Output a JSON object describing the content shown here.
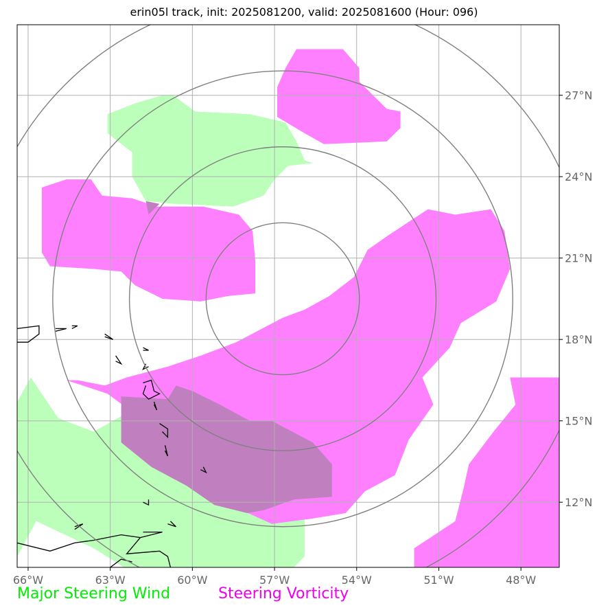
{
  "title": "erin05l track, init: 2025081200, valid: 2025081600 (Hour: 096)",
  "map": {
    "lon_range": [
      -66.4,
      -46.6
    ],
    "lat_range": [
      9.6,
      29.6
    ],
    "lon_ticks": [
      {
        "value": -66,
        "label": "66°W"
      },
      {
        "value": -63,
        "label": "63°W"
      },
      {
        "value": -60,
        "label": "60°W"
      },
      {
        "value": -57,
        "label": "57°W"
      },
      {
        "value": -54,
        "label": "54°W"
      },
      {
        "value": -51,
        "label": "51°W"
      },
      {
        "value": -48,
        "label": "48°W"
      }
    ],
    "lat_ticks": [
      {
        "value": 12,
        "label": "12°N"
      },
      {
        "value": 15,
        "label": "15°N"
      },
      {
        "value": 18,
        "label": "18°N"
      },
      {
        "value": 21,
        "label": "21°N"
      },
      {
        "value": 24,
        "label": "24°N"
      },
      {
        "value": 27,
        "label": "27°N"
      }
    ],
    "gridlines": true,
    "range_rings": {
      "center_lon": -56.7,
      "center_lat": 19.5,
      "radii_deg": [
        2.8,
        5.6,
        8.4,
        11.2
      ],
      "color": "#808080"
    },
    "colors": {
      "wind": "#bbffbb",
      "vorticity": "#ff80ff",
      "overlap": "#c080c0",
      "grid": "#b0b0b0",
      "coast": "#000000"
    },
    "wind_regions": [
      [
        [
          -62.1,
          26.7
        ],
        [
          -61.1,
          27.0
        ],
        [
          -60.7,
          27.0
        ],
        [
          -59.9,
          26.4
        ],
        [
          -57.9,
          26.3
        ],
        [
          -56.6,
          26.0
        ],
        [
          -56.2,
          25.3
        ],
        [
          -55.9,
          24.6
        ],
        [
          -55.6,
          24.5
        ],
        [
          -56.5,
          24.4
        ],
        [
          -57.0,
          23.9
        ],
        [
          -57.4,
          23.3
        ],
        [
          -58.5,
          22.9
        ],
        [
          -60.7,
          23.0
        ],
        [
          -61.7,
          23.1
        ],
        [
          -62.2,
          24.0
        ],
        [
          -62.2,
          24.9
        ],
        [
          -63.1,
          25.6
        ],
        [
          -63.1,
          26.3
        ]
      ],
      [
        [
          -66.4,
          10.0
        ],
        [
          -66.4,
          15.7
        ],
        [
          -65.9,
          16.6
        ],
        [
          -64.9,
          15.1
        ],
        [
          -63.6,
          14.6
        ],
        [
          -62.2,
          15.4
        ],
        [
          -61.1,
          14.3
        ],
        [
          -59.4,
          13.8
        ],
        [
          -57.4,
          13.0
        ],
        [
          -55.9,
          12.5
        ],
        [
          -55.9,
          10.0
        ],
        [
          -56.3,
          9.6
        ],
        [
          -62.5,
          9.6
        ],
        [
          -63.6,
          10.3
        ],
        [
          -65.7,
          11.3
        ]
      ]
    ],
    "vorticity_regions": [
      [
        [
          -56.2,
          28.7
        ],
        [
          -54.5,
          28.7
        ],
        [
          -53.9,
          28.0
        ],
        [
          -53.9,
          27.5
        ],
        [
          -52.9,
          26.5
        ],
        [
          -52.4,
          26.4
        ],
        [
          -52.4,
          25.8
        ],
        [
          -52.9,
          25.3
        ],
        [
          -55.2,
          25.2
        ],
        [
          -55.9,
          25.6
        ],
        [
          -56.9,
          26.2
        ],
        [
          -56.9,
          27.3
        ],
        [
          -56.6,
          28.0
        ]
      ],
      [
        [
          -65.5,
          23.6
        ],
        [
          -64.6,
          23.9
        ],
        [
          -63.7,
          23.9
        ],
        [
          -63.3,
          23.3
        ],
        [
          -62.2,
          23.2
        ],
        [
          -61.3,
          22.9
        ],
        [
          -60.6,
          22.9
        ],
        [
          -59.6,
          22.9
        ],
        [
          -58.3,
          22.6
        ],
        [
          -57.8,
          22.0
        ],
        [
          -57.7,
          20.9
        ],
        [
          -57.7,
          19.7
        ],
        [
          -58.7,
          19.6
        ],
        [
          -59.7,
          19.4
        ],
        [
          -61.1,
          19.5
        ],
        [
          -62.1,
          20.0
        ],
        [
          -62.6,
          20.5
        ],
        [
          -63.6,
          20.6
        ],
        [
          -65.2,
          20.7
        ],
        [
          -65.5,
          21.2
        ]
      ],
      [
        [
          -64.6,
          16.5
        ],
        [
          -64.2,
          16.5
        ],
        [
          -63.2,
          16.3
        ],
        [
          -62.4,
          16.6
        ],
        [
          -60.9,
          17.0
        ],
        [
          -59.7,
          17.4
        ],
        [
          -58.4,
          17.9
        ],
        [
          -56.7,
          18.8
        ],
        [
          -55.9,
          19.1
        ],
        [
          -55.0,
          19.6
        ],
        [
          -54.1,
          20.3
        ],
        [
          -53.6,
          21.3
        ],
        [
          -52.9,
          21.8
        ],
        [
          -51.4,
          22.8
        ],
        [
          -50.4,
          22.6
        ],
        [
          -49.1,
          22.8
        ],
        [
          -48.6,
          22.0
        ],
        [
          -48.4,
          20.6
        ],
        [
          -48.9,
          19.4
        ],
        [
          -50.2,
          18.6
        ],
        [
          -50.6,
          17.7
        ],
        [
          -51.6,
          16.6
        ],
        [
          -51.2,
          15.6
        ],
        [
          -52.1,
          14.3
        ],
        [
          -52.6,
          13.0
        ],
        [
          -53.7,
          12.4
        ],
        [
          -54.4,
          11.6
        ],
        [
          -55.6,
          11.4
        ],
        [
          -57.1,
          11.2
        ],
        [
          -58.4,
          11.8
        ],
        [
          -59.6,
          12.5
        ],
        [
          -60.6,
          13.1
        ],
        [
          -61.9,
          13.9
        ],
        [
          -62.6,
          14.7
        ],
        [
          -62.3,
          15.4
        ],
        [
          -63.1,
          16.0
        ]
      ],
      [
        [
          -48.4,
          16.6
        ],
        [
          -46.6,
          16.6
        ],
        [
          -46.6,
          9.6
        ],
        [
          -51.9,
          9.6
        ],
        [
          -51.9,
          10.3
        ],
        [
          -50.4,
          11.3
        ],
        [
          -50.1,
          12.5
        ],
        [
          -49.9,
          13.4
        ],
        [
          -49.0,
          14.6
        ],
        [
          -48.2,
          15.6
        ]
      ]
    ],
    "overlap_regions": [
      [
        [
          -62.6,
          15.9
        ],
        [
          -60.9,
          15.8
        ],
        [
          -60.6,
          16.3
        ],
        [
          -60.0,
          16.1
        ],
        [
          -59.0,
          15.6
        ],
        [
          -57.9,
          15.0
        ],
        [
          -57.1,
          15.0
        ],
        [
          -55.6,
          14.2
        ],
        [
          -54.9,
          13.4
        ],
        [
          -54.9,
          12.2
        ],
        [
          -56.3,
          12.1
        ],
        [
          -57.4,
          11.7
        ],
        [
          -58.0,
          11.6
        ],
        [
          -59.2,
          11.9
        ],
        [
          -60.2,
          12.6
        ],
        [
          -61.5,
          13.3
        ],
        [
          -62.6,
          14.2
        ]
      ],
      [
        [
          -61.7,
          23.1
        ],
        [
          -61.2,
          23.0
        ],
        [
          -61.6,
          22.6
        ]
      ]
    ],
    "coastlines": [
      [
        [
          -66.4,
          18.4
        ],
        [
          -65.6,
          18.5
        ],
        [
          -65.6,
          18.2
        ],
        [
          -66.0,
          17.9
        ],
        [
          -66.4,
          17.9
        ]
      ],
      [
        [
          -65.0,
          18.3
        ],
        [
          -64.6,
          18.4
        ],
        [
          -65.0,
          18.4
        ]
      ],
      [
        [
          -64.4,
          18.4
        ],
        [
          -64.2,
          18.5
        ],
        [
          -64.4,
          18.5
        ]
      ],
      [
        [
          -63.2,
          18.1
        ],
        [
          -62.9,
          18.0
        ],
        [
          -63.2,
          18.2
        ]
      ],
      [
        [
          -61.8,
          17.7
        ],
        [
          -61.6,
          17.6
        ],
        [
          -61.8,
          17.6
        ]
      ],
      [
        [
          -62.8,
          17.4
        ],
        [
          -62.6,
          17.1
        ],
        [
          -62.8,
          17.2
        ]
      ],
      [
        [
          -61.7,
          17.1
        ],
        [
          -61.8,
          16.9
        ],
        [
          -61.6,
          17.0
        ]
      ],
      [
        [
          -61.8,
          16.4
        ],
        [
          -61.5,
          16.5
        ],
        [
          -61.4,
          16.1
        ],
        [
          -61.2,
          16.0
        ],
        [
          -61.6,
          15.8
        ],
        [
          -61.8,
          16.0
        ],
        [
          -61.7,
          16.3
        ]
      ],
      [
        [
          -61.4,
          15.7
        ],
        [
          -61.3,
          15.4
        ],
        [
          -61.4,
          15.6
        ]
      ],
      [
        [
          -61.2,
          14.9
        ],
        [
          -60.9,
          14.7
        ],
        [
          -60.9,
          14.4
        ],
        [
          -61.1,
          14.6
        ]
      ],
      [
        [
          -61.0,
          14.1
        ],
        [
          -60.9,
          13.7
        ],
        [
          -61.0,
          13.9
        ]
      ],
      [
        [
          -59.6,
          13.3
        ],
        [
          -59.5,
          13.1
        ],
        [
          -59.7,
          13.2
        ]
      ],
      [
        [
          -61.6,
          12.1
        ],
        [
          -61.6,
          11.9
        ],
        [
          -61.8,
          12.0
        ]
      ],
      [
        [
          -60.8,
          11.3
        ],
        [
          -60.6,
          11.1
        ],
        [
          -60.9,
          11.2
        ]
      ],
      [
        [
          -66.4,
          10.5
        ],
        [
          -65.2,
          10.2
        ],
        [
          -64.3,
          10.5
        ],
        [
          -63.6,
          10.6
        ],
        [
          -62.6,
          10.8
        ],
        [
          -61.9,
          10.7
        ],
        [
          -62.4,
          10.1
        ],
        [
          -61.2,
          10.2
        ],
        [
          -60.9,
          10.0
        ],
        [
          -60.8,
          9.6
        ]
      ],
      [
        [
          -61.9,
          10.7
        ],
        [
          -61.1,
          10.9
        ],
        [
          -61.8,
          10.9
        ]
      ],
      [
        [
          -64.3,
          11.0
        ],
        [
          -64.0,
          11.2
        ],
        [
          -64.3,
          11.1
        ]
      ],
      [
        [
          -63.0,
          9.6
        ],
        [
          -62.6,
          9.9
        ],
        [
          -62.2,
          9.8
        ]
      ]
    ]
  },
  "legend": {
    "wind_label": "Major Steering Wind",
    "wind_color": "#00ee00",
    "vorticity_label": "Steering Vorticity",
    "vorticity_color": "#ee00ee"
  }
}
